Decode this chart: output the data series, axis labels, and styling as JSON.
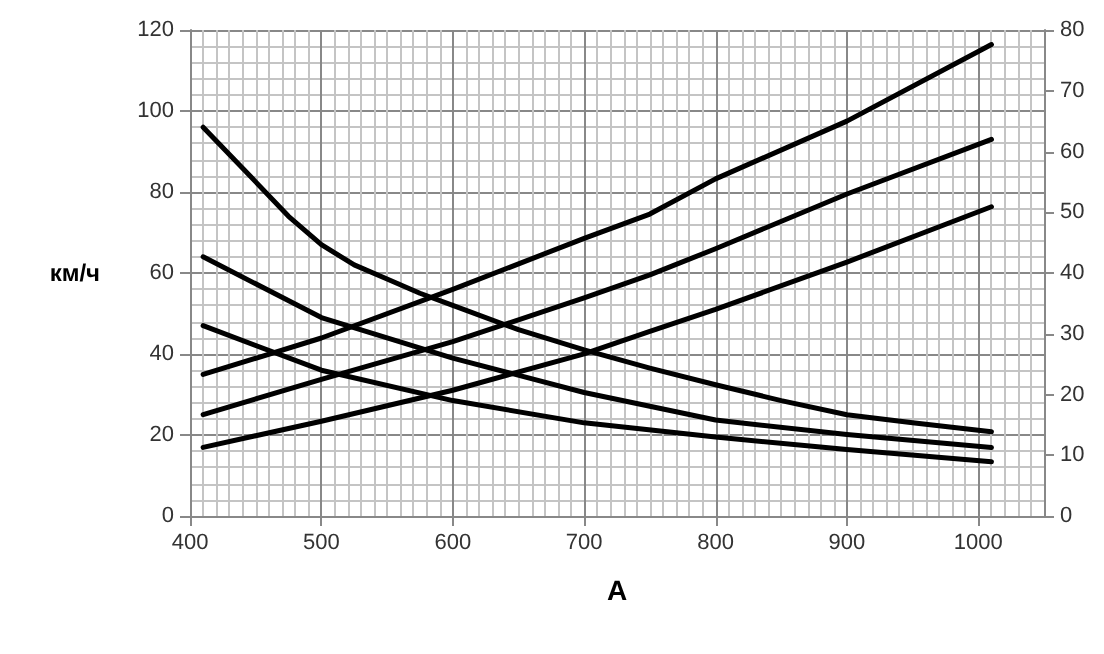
{
  "chart_data": {
    "type": "line",
    "xlabel": "A",
    "ylabel": "км/ч",
    "xlim": [
      400,
      1050
    ],
    "xticks": [
      400,
      500,
      600,
      700,
      800,
      900,
      1000
    ],
    "ylim": [
      0,
      120
    ],
    "yticks": [
      0,
      20,
      40,
      60,
      80,
      100,
      120
    ],
    "y2lim": [
      0,
      80
    ],
    "y2ticks": [
      0,
      10,
      20,
      30,
      40,
      50,
      60,
      70,
      80
    ],
    "grid": true,
    "marker": "none",
    "line_style": "solid",
    "series": [
      {
        "color": "#000000",
        "x": [
          410,
          450,
          475,
          500,
          525,
          550,
          575,
          600,
          650,
          700,
          750,
          800,
          850,
          900,
          950,
          1010
        ],
        "values": [
          96,
          82.5,
          74,
          67,
          62,
          58.5,
          55,
          52,
          46,
          41,
          36.5,
          32.4,
          28.5,
          25,
          23,
          20.8
        ]
      },
      {
        "color": "#000000",
        "x": [
          410,
          500,
          600,
          700,
          800,
          900,
          1010
        ],
        "values": [
          64,
          49,
          39,
          30.5,
          23.7,
          20.1,
          16.9
        ]
      },
      {
        "color": "#000000",
        "x": [
          410,
          500,
          600,
          700,
          800,
          900,
          1010
        ],
        "values": [
          47,
          36,
          28.5,
          23,
          19.5,
          16.4,
          13.4
        ]
      },
      {
        "color": "#000000",
        "axis": "y2",
        "x": [
          410,
          500,
          600,
          700,
          750,
          800,
          900,
          1010
        ],
        "values": [
          23.3,
          29.3,
          37.3,
          45.7,
          49.7,
          55.5,
          65,
          77.6
        ]
      },
      {
        "color": "#000000",
        "axis": "y2",
        "x": [
          410,
          500,
          600,
          700,
          750,
          800,
          900,
          1010
        ],
        "values": [
          16.7,
          22.5,
          28.7,
          35.9,
          39.7,
          44,
          53,
          62
        ]
      },
      {
        "color": "#000000",
        "axis": "y2",
        "x": [
          410,
          500,
          600,
          700,
          750,
          800,
          900,
          1010
        ],
        "values": [
          11.3,
          15.6,
          20.7,
          26.7,
          30.4,
          34,
          41.8,
          50.9
        ]
      }
    ]
  }
}
